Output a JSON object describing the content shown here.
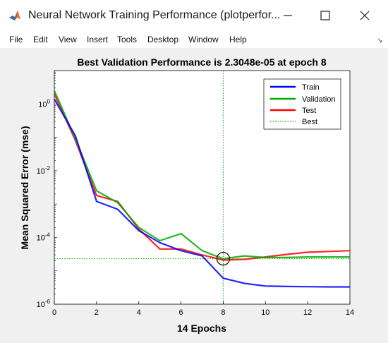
{
  "window": {
    "title": "Neural Network Training Performance (plotperfor...",
    "minimize_icon": "minimize-icon",
    "maximize_icon": "maximize-icon",
    "close_icon": "close-icon"
  },
  "menu": {
    "items": [
      "File",
      "Edit",
      "View",
      "Insert",
      "Tools",
      "Desktop",
      "Window",
      "Help"
    ]
  },
  "chart_data": {
    "type": "line",
    "title": "Best Validation Performance is 2.3048e-05 at epoch 8",
    "xlabel": "14 Epochs",
    "ylabel": "Mean Squared Error  (mse)",
    "xlim": [
      0,
      14
    ],
    "ylim": [
      1e-06,
      10
    ],
    "yscale": "log",
    "xticks": [
      0,
      2,
      4,
      6,
      8,
      10,
      12,
      14
    ],
    "xtick_labels": [
      "0",
      "2",
      "4",
      "6",
      "8",
      "10",
      "12",
      "14"
    ],
    "yticks": [
      1e-06,
      0.0001,
      0.01,
      1
    ],
    "ytick_labels": [
      {
        "base": "10",
        "exp": "-6"
      },
      {
        "base": "10",
        "exp": "-4"
      },
      {
        "base": "10",
        "exp": "-2"
      },
      {
        "base": "10",
        "exp": "0"
      }
    ],
    "x": [
      0,
      1,
      2,
      3,
      4,
      5,
      6,
      7,
      8,
      9,
      10,
      11,
      12,
      13,
      14
    ],
    "series": [
      {
        "name": "Train",
        "color": "#0000ff",
        "values": [
          1.4,
          0.11,
          0.0012,
          0.0007,
          0.00016,
          7e-05,
          4e-05,
          2.8e-05,
          6e-06,
          4.2e-06,
          3.5e-06,
          3.4e-06,
          3.35e-06,
          3.3e-06,
          3.3e-06
        ]
      },
      {
        "name": "Validation",
        "color": "#00aa00",
        "values": [
          2.5,
          0.09,
          0.0025,
          0.0011,
          0.0002,
          8e-05,
          0.00013,
          4e-05,
          2.3048e-05,
          2.8e-05,
          2.5e-05,
          2.5e-05,
          2.6e-05,
          2.6e-05,
          2.6e-05
        ]
      },
      {
        "name": "Test",
        "color": "#ff0000",
        "values": [
          2.0,
          0.08,
          0.0018,
          0.0012,
          0.00018,
          4.5e-05,
          4.5e-05,
          3e-05,
          2.1e-05,
          2.2e-05,
          2.6e-05,
          3.1e-05,
          3.6e-05,
          3.8e-05,
          4e-05
        ]
      }
    ],
    "best": {
      "name": "Best",
      "epoch": 8,
      "value": 2.3048e-05,
      "color": "#00aa00",
      "style": "dotted"
    },
    "legend_position": "top-right",
    "grid": false
  }
}
